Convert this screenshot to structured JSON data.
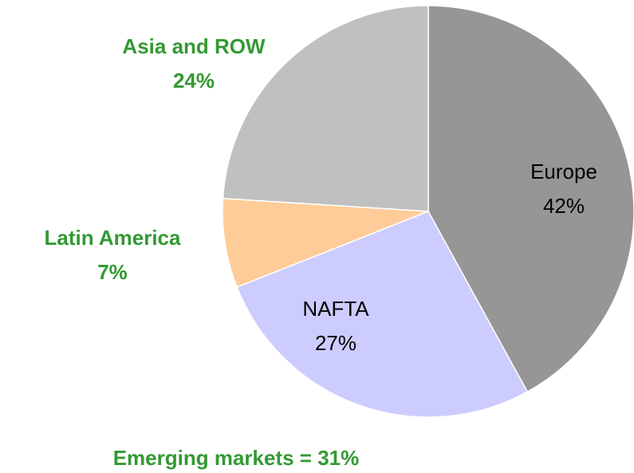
{
  "chart_data": {
    "type": "pie",
    "categories": [
      "Europe",
      "NAFTA",
      "Latin America",
      "Asia and ROW"
    ],
    "values": [
      42,
      27,
      7,
      24
    ],
    "value_labels": [
      "42%",
      "27%",
      "7%",
      "24%"
    ],
    "colors": [
      "#969696",
      "#ccccff",
      "#ffcc99",
      "#c0c0c0"
    ],
    "label_colors": [
      "#000000",
      "#000000",
      "#339933",
      "#339933"
    ],
    "label_bold": [
      false,
      false,
      true,
      true
    ],
    "annotation": "Emerging markets = 31%",
    "annotation_color": "#339933"
  }
}
